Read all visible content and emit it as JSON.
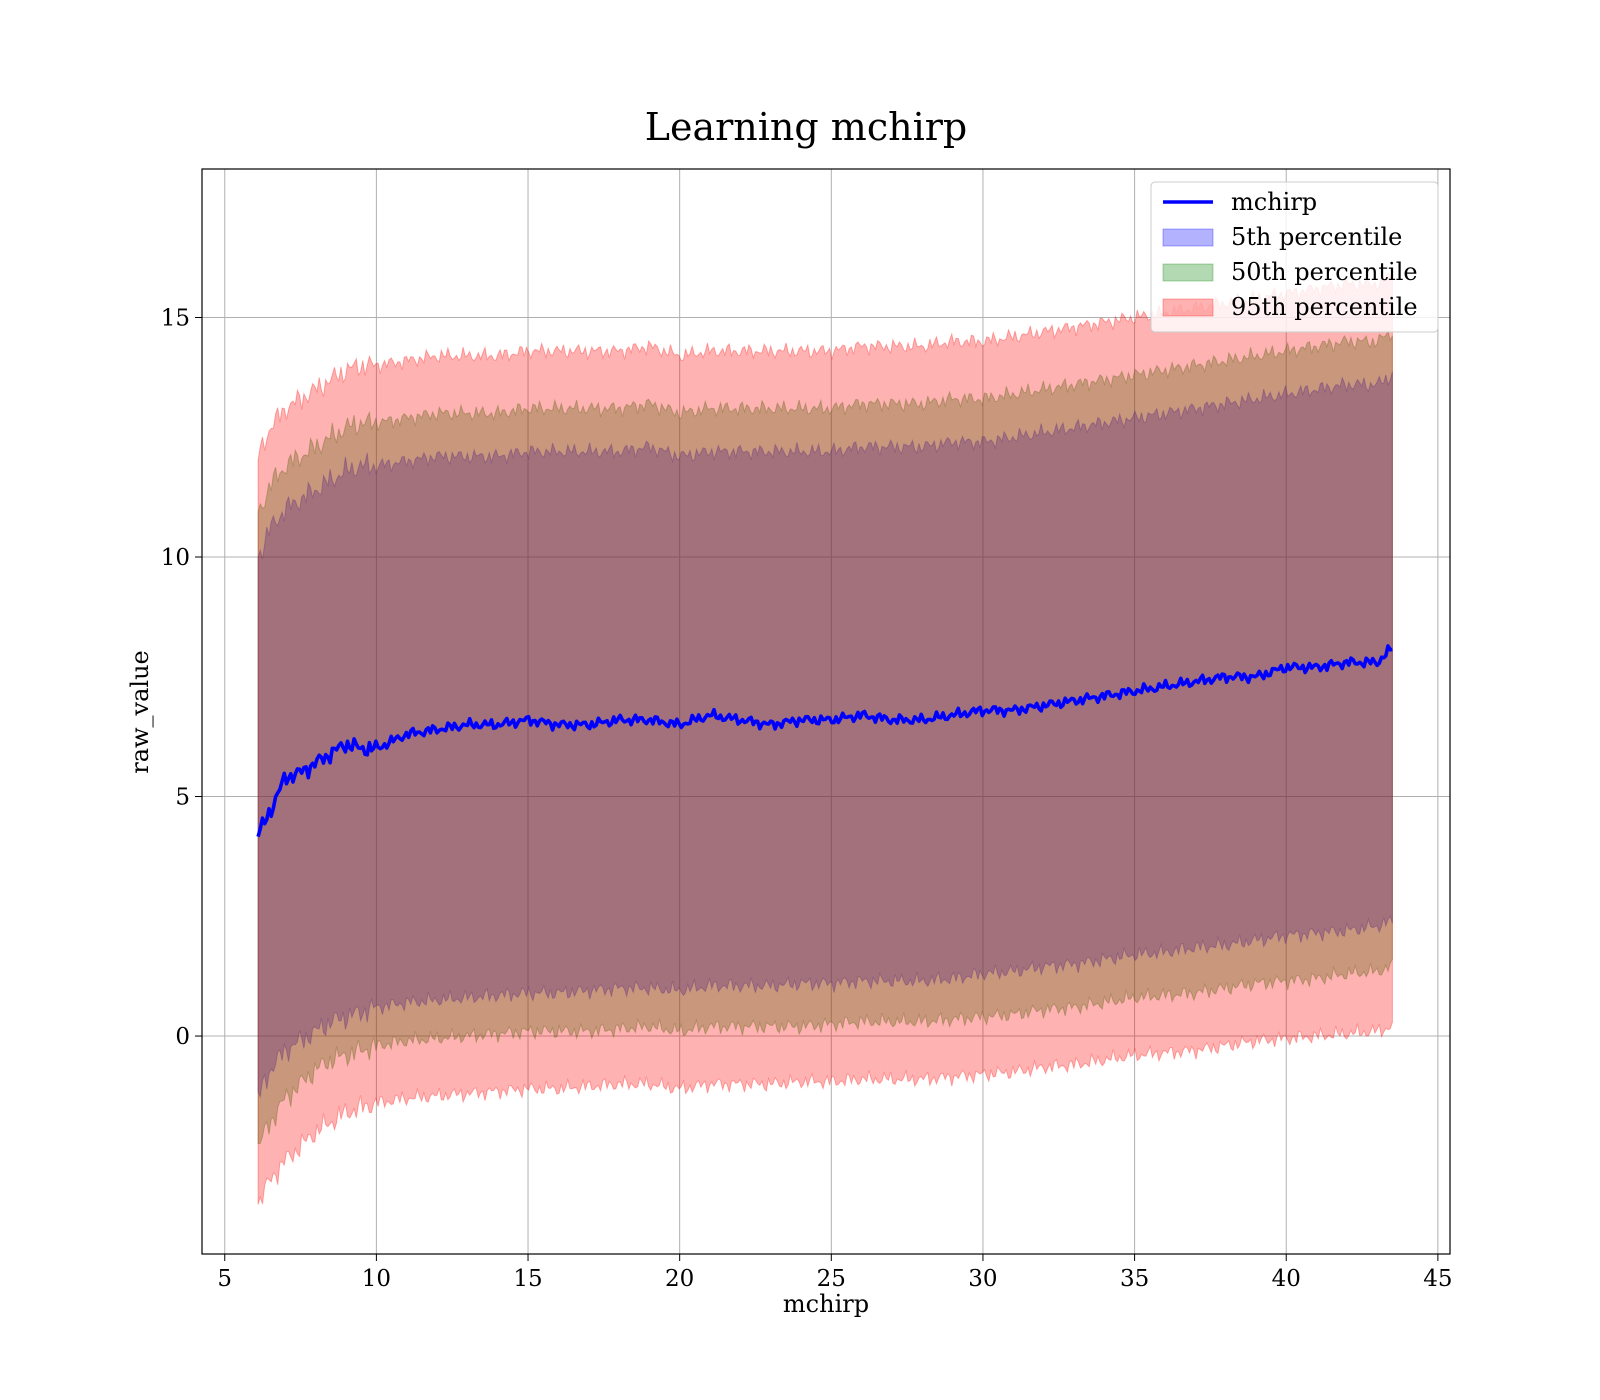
{
  "chart_data": {
    "type": "line",
    "title": "Learning mchirp",
    "xlabel": "mchirp",
    "ylabel": "raw_value",
    "xlim": [
      4.25,
      45.4
    ],
    "ylim": [
      -4.55,
      18.1
    ],
    "xticks": [
      5,
      10,
      15,
      20,
      25,
      30,
      35,
      40,
      45
    ],
    "yticks": [
      0,
      5,
      10,
      15
    ],
    "grid": true,
    "legend_position": "top-right",
    "x": [
      6.1,
      6.5,
      7.0,
      7.5,
      8.0,
      8.5,
      9.0,
      9.5,
      10.0,
      11,
      12,
      13,
      14,
      15,
      16,
      17,
      18,
      19,
      20,
      21,
      22,
      23,
      24,
      25,
      26,
      27,
      28,
      29,
      30,
      31,
      32,
      33,
      34,
      35,
      36,
      37,
      38,
      39,
      40,
      41,
      42,
      43,
      43.5
    ],
    "series": [
      {
        "name": "mchirp",
        "kind": "line",
        "color": "#0000ff",
        "values": [
          4.2,
          4.7,
          5.4,
          5.5,
          5.7,
          5.9,
          6.1,
          6.0,
          6.0,
          6.3,
          6.4,
          6.5,
          6.5,
          6.6,
          6.5,
          6.5,
          6.6,
          6.6,
          6.5,
          6.7,
          6.6,
          6.5,
          6.6,
          6.6,
          6.7,
          6.6,
          6.6,
          6.7,
          6.8,
          6.8,
          6.9,
          7.0,
          7.1,
          7.2,
          7.3,
          7.4,
          7.5,
          7.5,
          7.7,
          7.7,
          7.8,
          7.8,
          8.1
        ]
      },
      {
        "name": "5th percentile",
        "kind": "band",
        "color": "#0000ff",
        "lower": [
          -1.3,
          -0.7,
          -0.3,
          -0.1,
          0.1,
          0.3,
          0.4,
          0.5,
          0.6,
          0.7,
          0.75,
          0.8,
          0.85,
          0.9,
          0.9,
          0.95,
          1.0,
          1.0,
          0.95,
          1.05,
          1.05,
          1.05,
          1.1,
          1.1,
          1.15,
          1.15,
          1.15,
          1.2,
          1.3,
          1.35,
          1.45,
          1.5,
          1.6,
          1.7,
          1.75,
          1.85,
          1.9,
          2.0,
          2.1,
          2.15,
          2.2,
          2.3,
          2.4
        ],
        "upper": [
          10.0,
          10.6,
          11.0,
          11.2,
          11.4,
          11.6,
          11.8,
          11.9,
          11.9,
          12.0,
          12.1,
          12.1,
          12.1,
          12.2,
          12.2,
          12.2,
          12.2,
          12.3,
          12.1,
          12.2,
          12.2,
          12.2,
          12.2,
          12.2,
          12.3,
          12.3,
          12.3,
          12.4,
          12.4,
          12.5,
          12.6,
          12.7,
          12.8,
          12.9,
          13.0,
          13.1,
          13.2,
          13.3,
          13.4,
          13.5,
          13.6,
          13.6,
          13.8
        ]
      },
      {
        "name": "50th percentile",
        "kind": "band",
        "color": "#008000",
        "lower": [
          -2.3,
          -1.8,
          -1.3,
          -1.0,
          -0.7,
          -0.5,
          -0.4,
          -0.3,
          -0.2,
          -0.1,
          -0.05,
          0.0,
          0.05,
          0.1,
          0.1,
          0.1,
          0.15,
          0.2,
          0.1,
          0.2,
          0.2,
          0.2,
          0.2,
          0.25,
          0.3,
          0.3,
          0.3,
          0.35,
          0.4,
          0.45,
          0.55,
          0.6,
          0.7,
          0.8,
          0.85,
          0.9,
          1.0,
          1.1,
          1.15,
          1.2,
          1.3,
          1.35,
          1.45
        ],
        "upper": [
          10.9,
          11.5,
          11.9,
          12.1,
          12.3,
          12.5,
          12.7,
          12.8,
          12.8,
          12.9,
          13.0,
          13.0,
          13.0,
          13.1,
          13.1,
          13.1,
          13.1,
          13.2,
          13.0,
          13.1,
          13.1,
          13.1,
          13.1,
          13.1,
          13.2,
          13.2,
          13.2,
          13.3,
          13.3,
          13.4,
          13.5,
          13.6,
          13.7,
          13.8,
          13.9,
          14.0,
          14.1,
          14.2,
          14.3,
          14.4,
          14.5,
          14.5,
          14.7
        ]
      },
      {
        "name": "95th percentile",
        "kind": "band",
        "color": "#ff0000",
        "lower": [
          -3.5,
          -3.0,
          -2.6,
          -2.3,
          -2.0,
          -1.8,
          -1.6,
          -1.5,
          -1.4,
          -1.3,
          -1.25,
          -1.2,
          -1.15,
          -1.1,
          -1.1,
          -1.05,
          -1.0,
          -1.0,
          -1.1,
          -1.0,
          -1.0,
          -1.0,
          -0.95,
          -0.95,
          -0.9,
          -0.9,
          -0.9,
          -0.85,
          -0.8,
          -0.75,
          -0.65,
          -0.6,
          -0.5,
          -0.4,
          -0.35,
          -0.3,
          -0.2,
          -0.1,
          -0.05,
          0.0,
          0.05,
          0.1,
          0.2
        ],
        "upper": [
          12.1,
          12.7,
          13.1,
          13.3,
          13.5,
          13.7,
          13.9,
          14.0,
          14.0,
          14.1,
          14.2,
          14.2,
          14.2,
          14.3,
          14.3,
          14.3,
          14.3,
          14.4,
          14.2,
          14.3,
          14.3,
          14.3,
          14.3,
          14.3,
          14.4,
          14.4,
          14.4,
          14.5,
          14.5,
          14.6,
          14.7,
          14.8,
          14.9,
          15.0,
          15.1,
          15.2,
          15.3,
          15.4,
          15.5,
          15.6,
          15.7,
          15.7,
          15.9
        ]
      }
    ]
  }
}
